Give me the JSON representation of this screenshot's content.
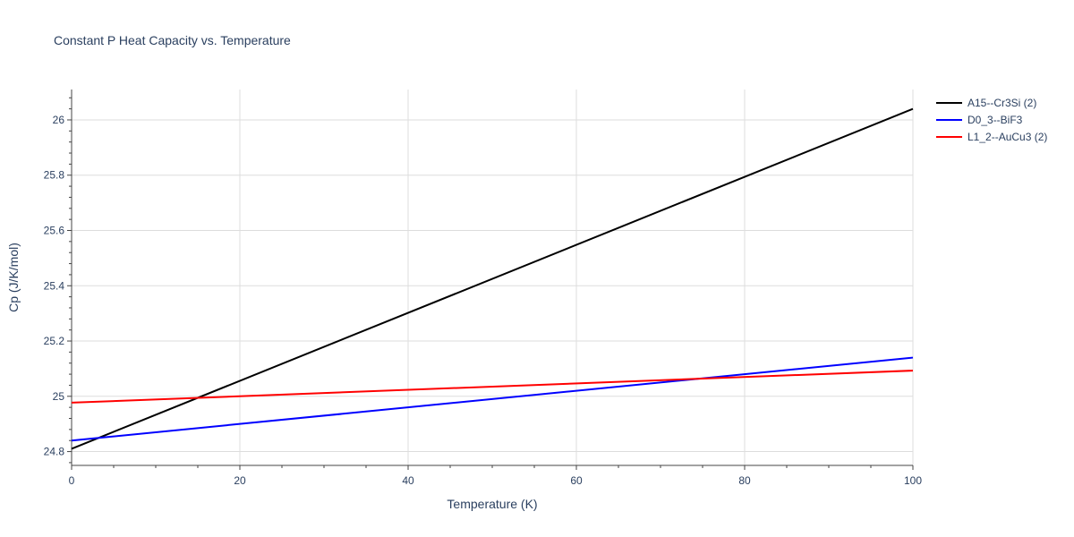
{
  "chart_data": {
    "type": "line",
    "title": "Constant P Heat Capacity vs. Temperature",
    "xlabel": "Temperature (K)",
    "ylabel": "Cp (J/K/mol)",
    "xlim": [
      0,
      100
    ],
    "ylim": [
      24.75,
      26.11
    ],
    "xticks": [
      0,
      20,
      40,
      60,
      80,
      100
    ],
    "yticks": [
      24.8,
      25,
      25.2,
      25.4,
      25.6,
      25.8,
      26
    ],
    "ytick_labels": [
      "24.8",
      "25",
      "25.2",
      "25.4",
      "25.6",
      "25.8",
      "26"
    ],
    "grid": true,
    "legend_position": "top-right",
    "series": [
      {
        "name": "A15--Cr3Si (2)",
        "color": "#000000",
        "x": [
          0,
          100
        ],
        "y": [
          24.81,
          26.04
        ]
      },
      {
        "name": "D0_3--BiF3",
        "color": "#0000ff",
        "x": [
          0,
          100
        ],
        "y": [
          24.84,
          25.14
        ]
      },
      {
        "name": "L1_2--AuCu3 (2)",
        "color": "#ff0000",
        "x": [
          0,
          100
        ],
        "y": [
          24.977,
          25.093
        ]
      }
    ]
  }
}
